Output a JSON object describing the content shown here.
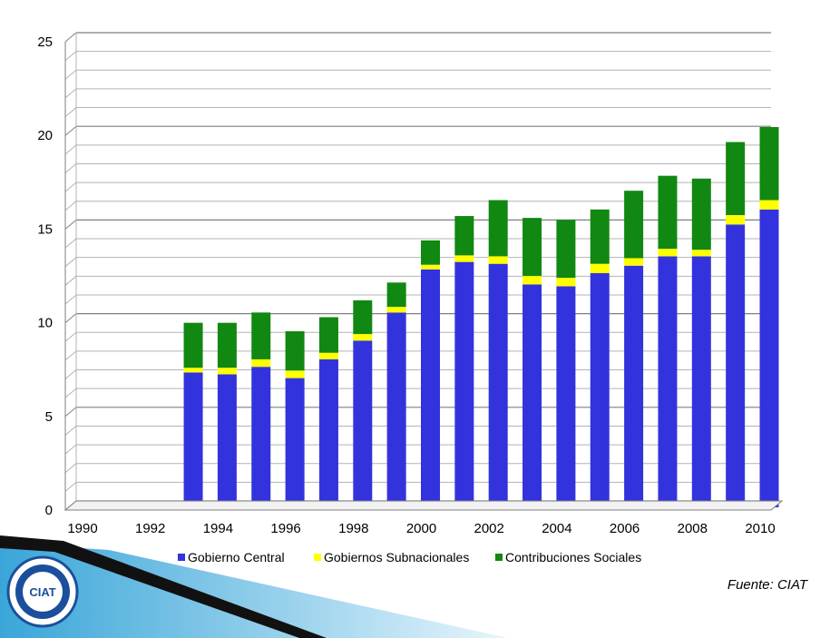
{
  "chart_data": {
    "type": "bar",
    "stacked": true,
    "x": [
      1990,
      1991,
      1992,
      1993,
      1994,
      1995,
      1996,
      1997,
      1998,
      1999,
      2000,
      2001,
      2002,
      2003,
      2004,
      2005,
      2006,
      2007,
      2008,
      2009,
      2010
    ],
    "x_tick_labels": [
      "1990",
      "1992",
      "1994",
      "1996",
      "1998",
      "2000",
      "2002",
      "2004",
      "2006",
      "2008",
      "2010"
    ],
    "y_tick_labels": [
      "0",
      "5",
      "10",
      "15",
      "20",
      "25"
    ],
    "ylim": [
      0,
      25
    ],
    "grid": true,
    "legend_position": "bottom",
    "series": [
      {
        "name": "Gobierno Central",
        "color": "#3333dd",
        "values": [
          null,
          null,
          null,
          7.2,
          7.1,
          7.5,
          6.9,
          7.9,
          8.9,
          10.4,
          12.7,
          13.1,
          13.0,
          11.9,
          11.8,
          12.5,
          12.9,
          13.4,
          13.4,
          15.1,
          15.9
        ]
      },
      {
        "name": "Gobiernos Subnacionales",
        "color": "#ffff00",
        "values": [
          null,
          null,
          null,
          0.25,
          0.35,
          0.4,
          0.4,
          0.35,
          0.35,
          0.3,
          0.25,
          0.35,
          0.4,
          0.45,
          0.45,
          0.5,
          0.4,
          0.4,
          0.35,
          0.5,
          0.5
        ]
      },
      {
        "name": "Contribuciones Sociales",
        "color": "#118811",
        "values": [
          null,
          null,
          null,
          2.4,
          2.4,
          2.5,
          2.1,
          1.9,
          1.8,
          1.3,
          1.3,
          2.1,
          3.0,
          3.1,
          3.1,
          2.9,
          3.6,
          3.9,
          3.8,
          3.9,
          3.9
        ]
      }
    ]
  },
  "footer": {
    "source_text": "Fuente: CIAT",
    "logo_text": "CIAT"
  }
}
